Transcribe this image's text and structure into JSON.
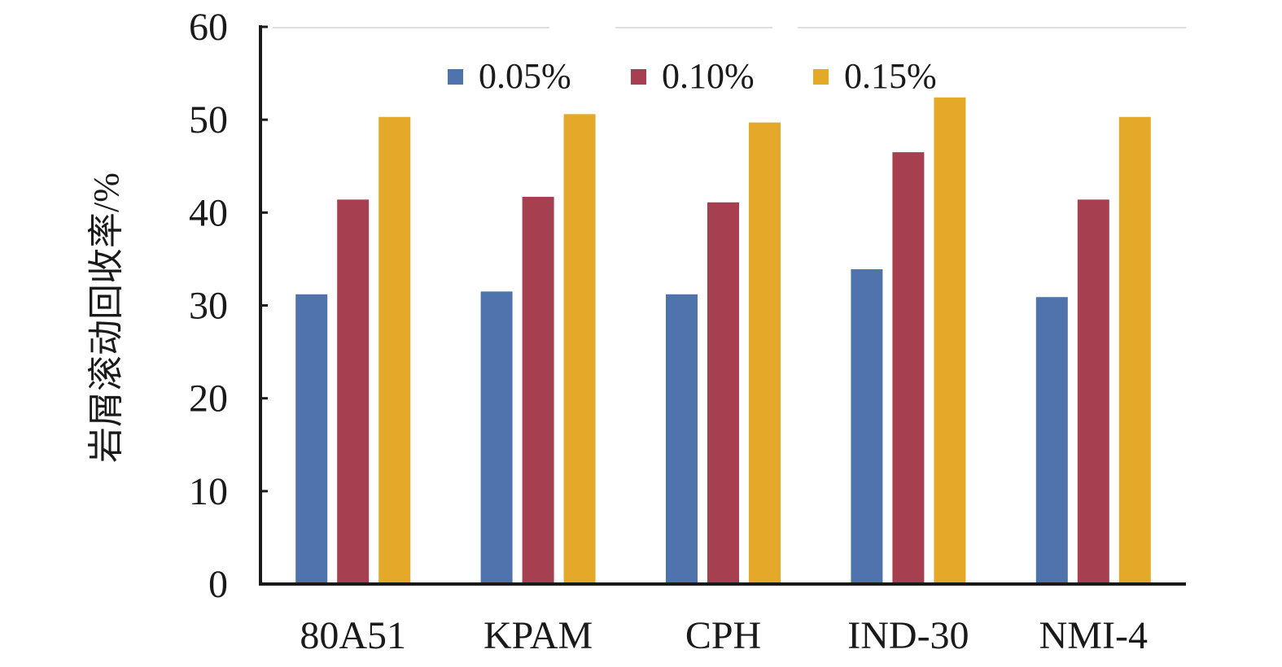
{
  "chart_data": {
    "type": "bar",
    "title": "",
    "xlabel": "",
    "ylabel": "岩屑滚动回收率/%",
    "ylim": [
      0,
      60
    ],
    "yticks": [
      0,
      10,
      20,
      30,
      40,
      50,
      60
    ],
    "grid": false,
    "legend_position": "top",
    "categories": [
      "80A51",
      "KPAM",
      "CPH",
      "IND-30",
      "NMI-4"
    ],
    "series": [
      {
        "name": "0.05%",
        "color": "#4e73ad",
        "values": [
          31.2,
          31.5,
          31.2,
          33.9,
          30.9
        ]
      },
      {
        "name": "0.10%",
        "color": "#a63f4f",
        "values": [
          41.4,
          41.7,
          41.1,
          46.5,
          41.4
        ]
      },
      {
        "name": "0.15%",
        "color": "#e5a92a",
        "values": [
          50.3,
          50.6,
          49.7,
          52.4,
          50.3
        ]
      }
    ]
  }
}
